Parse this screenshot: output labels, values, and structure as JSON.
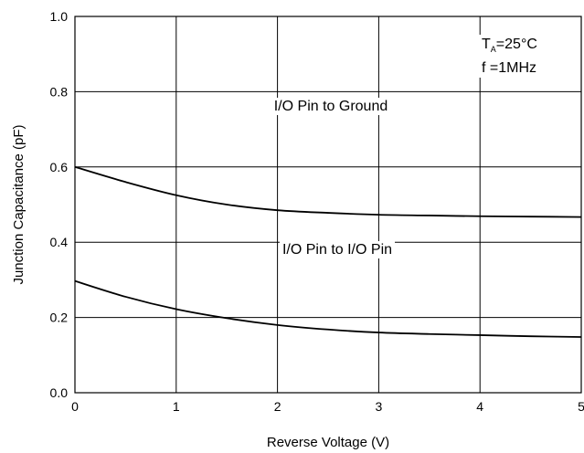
{
  "chart_data": {
    "type": "line",
    "title": "",
    "xlabel": "Reverse Voltage (V)",
    "ylabel": "Junction Capacitance (pF)",
    "xlim": [
      0,
      5
    ],
    "ylim": [
      0,
      1.0
    ],
    "x_ticks": [
      "0",
      "1",
      "2",
      "3",
      "4",
      "5"
    ],
    "y_ticks": [
      "0.0",
      "0.2",
      "0.4",
      "0.6",
      "0.8",
      "1.0"
    ],
    "grid": true,
    "series": [
      {
        "name": "I/O Pin to Ground",
        "x": [
          0,
          0.5,
          1,
          1.5,
          2,
          2.5,
          3,
          3.5,
          4,
          4.5,
          5
        ],
        "y": [
          0.6,
          0.56,
          0.525,
          0.5,
          0.485,
          0.478,
          0.473,
          0.471,
          0.469,
          0.468,
          0.467
        ],
        "color": "#000000"
      },
      {
        "name": "I/O Pin to I/O Pin",
        "x": [
          0,
          0.5,
          1,
          1.5,
          2,
          2.5,
          3,
          3.5,
          4,
          4.5,
          5
        ],
        "y": [
          0.297,
          0.255,
          0.222,
          0.198,
          0.18,
          0.168,
          0.16,
          0.156,
          0.153,
          0.15,
          0.148
        ],
        "color": "#000000"
      }
    ],
    "conditions": {
      "temp_symbol": "T",
      "temp_subscript": "A",
      "temp_value": "=25°C",
      "freq_text": "f =1MHz"
    }
  }
}
